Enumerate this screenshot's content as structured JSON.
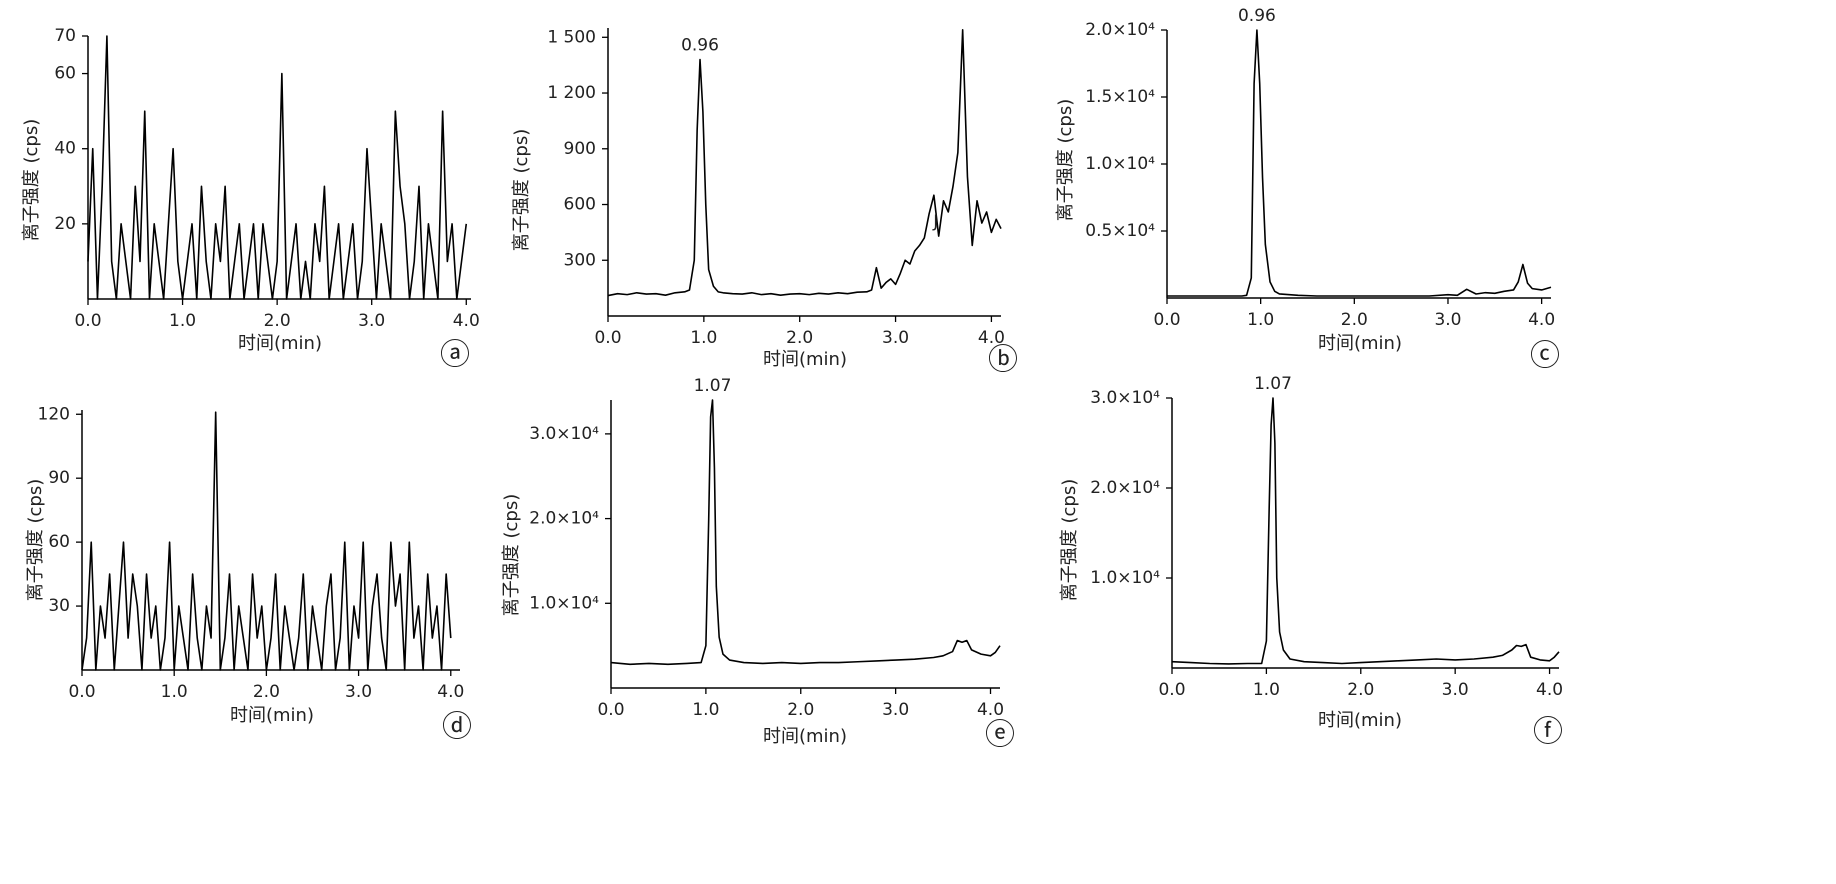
{
  "chart_data": [
    {
      "type": "line",
      "panel_label": "ⓐ",
      "xlabel": "时间(min)",
      "ylabel": "离子强度 (cps)",
      "color": "#000000",
      "x": [
        0,
        0.05,
        0.1,
        0.15,
        0.2,
        0.25,
        0.3,
        0.35,
        0.4,
        0.45,
        0.5,
        0.55,
        0.6,
        0.65,
        0.7,
        0.75,
        0.8,
        0.85,
        0.9,
        0.95,
        1.0,
        1.05,
        1.1,
        1.15,
        1.2,
        1.25,
        1.3,
        1.35,
        1.4,
        1.45,
        1.5,
        1.55,
        1.6,
        1.65,
        1.7,
        1.75,
        1.8,
        1.85,
        1.9,
        1.95,
        2.0,
        2.05,
        2.1,
        2.15,
        2.2,
        2.25,
        2.3,
        2.35,
        2.4,
        2.45,
        2.5,
        2.55,
        2.6,
        2.65,
        2.7,
        2.75,
        2.8,
        2.85,
        2.9,
        2.95,
        3.0,
        3.05,
        3.1,
        3.15,
        3.2,
        3.25,
        3.3,
        3.35,
        3.4,
        3.45,
        3.5,
        3.55,
        3.6,
        3.65,
        3.7,
        3.75,
        3.8,
        3.85,
        3.9,
        3.95,
        4.0
      ],
      "values": [
        10,
        40,
        0,
        30,
        70,
        10,
        0,
        20,
        10,
        0,
        30,
        10,
        50,
        0,
        20,
        10,
        0,
        20,
        40,
        10,
        0,
        10,
        20,
        0,
        30,
        10,
        0,
        20,
        10,
        30,
        0,
        10,
        20,
        0,
        10,
        20,
        0,
        20,
        10,
        0,
        10,
        60,
        0,
        10,
        20,
        0,
        10,
        0,
        20,
        10,
        30,
        0,
        10,
        20,
        0,
        10,
        20,
        0,
        10,
        40,
        20,
        0,
        20,
        10,
        0,
        50,
        30,
        20,
        0,
        10,
        30,
        0,
        20,
        10,
        0,
        50,
        10,
        20,
        0,
        10,
        20
      ],
      "xlim": [
        0,
        4.05
      ],
      "ylim": [
        0,
        70
      ],
      "xticks": [
        {
          "value": 0,
          "label": "0.0"
        },
        {
          "value": 1,
          "label": "1.0"
        },
        {
          "value": 2,
          "label": "2.0"
        },
        {
          "value": 3,
          "label": "3.0"
        },
        {
          "value": 4,
          "label": "4.0"
        }
      ],
      "yticks": [
        20,
        40,
        60,
        70
      ]
    },
    {
      "type": "line",
      "panel_label": "ⓑ",
      "xlabel": "时间(min)",
      "ylabel": "离子强度 (cps)",
      "color": "#000000",
      "x": [
        0,
        0.1,
        0.2,
        0.3,
        0.4,
        0.5,
        0.6,
        0.7,
        0.8,
        0.85,
        0.9,
        0.93,
        0.96,
        0.99,
        1.02,
        1.05,
        1.1,
        1.15,
        1.2,
        1.3,
        1.4,
        1.5,
        1.6,
        1.7,
        1.8,
        1.9,
        2.0,
        2.1,
        2.2,
        2.3,
        2.4,
        2.5,
        2.6,
        2.7,
        2.75,
        2.8,
        2.85,
        2.9,
        2.95,
        3.0,
        3.05,
        3.1,
        3.15,
        3.2,
        3.25,
        3.3,
        3.35,
        3.4,
        3.45,
        3.5,
        3.55,
        3.6,
        3.65,
        3.7,
        3.75,
        3.8,
        3.85,
        3.9,
        3.95,
        4.0,
        4.05,
        4.1
      ],
      "values": [
        110,
        120,
        115,
        125,
        118,
        120,
        112,
        125,
        130,
        140,
        300,
        1000,
        1380,
        1100,
        600,
        250,
        160,
        130,
        125,
        120,
        118,
        125,
        115,
        120,
        112,
        118,
        120,
        115,
        122,
        118,
        125,
        120,
        128,
        130,
        140,
        260,
        150,
        180,
        200,
        170,
        230,
        300,
        280,
        350,
        380,
        420,
        550,
        650,
        430,
        620,
        560,
        700,
        880,
        1540,
        750,
        380,
        620,
        500,
        560,
        450,
        520,
        470
      ],
      "xlim": [
        0,
        4.1
      ],
      "ylim": [
        0,
        1550
      ],
      "xticks": [
        {
          "value": 0,
          "label": "0.0"
        },
        {
          "value": 1,
          "label": "1.0"
        },
        {
          "value": 2,
          "label": "2.0"
        },
        {
          "value": 3,
          "label": "3.0"
        },
        {
          "value": 4,
          "label": "4.0"
        }
      ],
      "yticks": [
        300,
        600,
        900,
        {
          "value": 1200,
          "label": "1 200"
        },
        {
          "value": 1500,
          "label": "1 500"
        }
      ],
      "annotations": [
        {
          "text": "0.96",
          "x": 0.96,
          "y": 1380
        },
        {
          "text": "J",
          "x": 3.42,
          "y": 430
        }
      ]
    },
    {
      "type": "line",
      "panel_label": "ⓒ",
      "xlabel": "时间(min)",
      "ylabel": "离子强度 (cps)",
      "color": "#000000",
      "x": [
        0,
        0.2,
        0.4,
        0.6,
        0.8,
        0.85,
        0.9,
        0.93,
        0.96,
        0.99,
        1.02,
        1.05,
        1.1,
        1.15,
        1.2,
        1.4,
        1.6,
        1.8,
        2.0,
        2.2,
        2.4,
        2.6,
        2.8,
        3.0,
        3.1,
        3.2,
        3.3,
        3.4,
        3.5,
        3.6,
        3.7,
        3.75,
        3.8,
        3.85,
        3.9,
        4.0,
        4.1
      ],
      "values": [
        150,
        150,
        150,
        150,
        150,
        200,
        1500,
        16000,
        20000,
        16000,
        9000,
        4000,
        1200,
        500,
        300,
        200,
        150,
        150,
        150,
        150,
        150,
        150,
        150,
        250,
        200,
        650,
        300,
        400,
        350,
        500,
        600,
        1200,
        2500,
        1100,
        700,
        600,
        800
      ],
      "xlim": [
        0,
        4.1
      ],
      "ylim": [
        0,
        20000
      ],
      "xticks": [
        {
          "value": 0,
          "label": "0.0"
        },
        {
          "value": 1,
          "label": "1.0"
        },
        {
          "value": 2,
          "label": "2.0"
        },
        {
          "value": 3,
          "label": "3.0"
        },
        {
          "value": 4,
          "label": "4.0"
        }
      ],
      "yticks": [
        {
          "value": 5000,
          "label": "0.5×10⁴"
        },
        {
          "value": 10000,
          "label": "1.0×10⁴"
        },
        {
          "value": 15000,
          "label": "1.5×10⁴"
        },
        {
          "value": 20000,
          "label": "2.0×10⁴"
        }
      ],
      "annotations": [
        {
          "text": "0.96",
          "x": 0.96,
          "y": 20000
        }
      ]
    },
    {
      "type": "line",
      "panel_label": "ⓓ",
      "xlabel": "时间(min)",
      "ylabel": "离子强度 (cps)",
      "color": "#000000",
      "x": [
        0,
        0.05,
        0.1,
        0.15,
        0.2,
        0.25,
        0.3,
        0.35,
        0.4,
        0.45,
        0.5,
        0.55,
        0.6,
        0.65,
        0.7,
        0.75,
        0.8,
        0.85,
        0.9,
        0.95,
        1.0,
        1.05,
        1.1,
        1.15,
        1.2,
        1.25,
        1.3,
        1.35,
        1.4,
        1.45,
        1.5,
        1.55,
        1.6,
        1.65,
        1.7,
        1.75,
        1.8,
        1.85,
        1.9,
        1.95,
        2.0,
        2.05,
        2.1,
        2.15,
        2.2,
        2.25,
        2.3,
        2.35,
        2.4,
        2.45,
        2.5,
        2.55,
        2.6,
        2.65,
        2.7,
        2.75,
        2.8,
        2.85,
        2.9,
        2.95,
        3.0,
        3.05,
        3.1,
        3.15,
        3.2,
        3.25,
        3.3,
        3.35,
        3.4,
        3.45,
        3.5,
        3.55,
        3.6,
        3.65,
        3.7,
        3.75,
        3.8,
        3.85,
        3.9,
        3.95,
        4.0
      ],
      "values": [
        0,
        15,
        60,
        0,
        30,
        15,
        45,
        0,
        30,
        60,
        15,
        45,
        30,
        0,
        45,
        15,
        30,
        0,
        15,
        60,
        0,
        30,
        15,
        0,
        45,
        15,
        0,
        30,
        15,
        121,
        0,
        15,
        45,
        0,
        30,
        15,
        0,
        45,
        15,
        30,
        0,
        15,
        45,
        0,
        30,
        15,
        0,
        15,
        45,
        0,
        30,
        15,
        0,
        30,
        45,
        0,
        15,
        60,
        0,
        30,
        15,
        60,
        0,
        30,
        45,
        15,
        0,
        60,
        30,
        45,
        0,
        60,
        15,
        30,
        0,
        45,
        15,
        30,
        0,
        45,
        15
      ],
      "xlim": [
        0,
        4.1
      ],
      "ylim": [
        0,
        122
      ],
      "xticks": [
        {
          "value": 0,
          "label": "0.0"
        },
        {
          "value": 1,
          "label": "1.0"
        },
        {
          "value": 2,
          "label": "2.0"
        },
        {
          "value": 3,
          "label": "3.0"
        },
        {
          "value": 4,
          "label": "4.0"
        }
      ],
      "yticks": [
        30,
        60,
        90,
        120
      ]
    },
    {
      "type": "line",
      "panel_label": "ⓔ",
      "xlabel": "时间(min)",
      "ylabel": "离子强度 (cps)",
      "color": "#000000",
      "x": [
        0,
        0.2,
        0.4,
        0.6,
        0.8,
        0.95,
        1.0,
        1.03,
        1.05,
        1.07,
        1.09,
        1.11,
        1.14,
        1.18,
        1.25,
        1.4,
        1.6,
        1.8,
        2.0,
        2.2,
        2.4,
        2.6,
        2.8,
        3.0,
        3.2,
        3.4,
        3.5,
        3.6,
        3.65,
        3.7,
        3.75,
        3.8,
        3.9,
        4.0,
        4.05,
        4.1
      ],
      "values": [
        3000,
        2800,
        2900,
        2800,
        2900,
        3000,
        5000,
        20000,
        32000,
        34000,
        26000,
        12000,
        6000,
        4000,
        3300,
        3000,
        2900,
        3000,
        2900,
        3000,
        3000,
        3100,
        3200,
        3300,
        3400,
        3600,
        3800,
        4300,
        5600,
        5400,
        5600,
        4500,
        4000,
        3800,
        4200,
        5000
      ],
      "xlim": [
        0,
        4.1
      ],
      "ylim": [
        0,
        34000
      ],
      "xticks": [
        {
          "value": 0,
          "label": "0.0"
        },
        {
          "value": 1,
          "label": "1.0"
        },
        {
          "value": 2,
          "label": "2.0"
        },
        {
          "value": 3,
          "label": "3.0"
        },
        {
          "value": 4,
          "label": "4.0"
        }
      ],
      "yticks": [
        {
          "value": 10000,
          "label": "1.0×10⁴"
        },
        {
          "value": 20000,
          "label": "2.0×10⁴"
        },
        {
          "value": 30000,
          "label": "3.0×10⁴"
        }
      ],
      "annotations": [
        {
          "text": "1.07",
          "x": 1.07,
          "y": 34000
        }
      ]
    },
    {
      "type": "line",
      "panel_label": "ⓕ",
      "xlabel": "时间(min)",
      "ylabel": "离子强度 (cps)",
      "color": "#000000",
      "x": [
        0,
        0.2,
        0.4,
        0.6,
        0.8,
        0.95,
        1.0,
        1.03,
        1.05,
        1.07,
        1.09,
        1.11,
        1.14,
        1.18,
        1.25,
        1.4,
        1.6,
        1.8,
        2.0,
        2.2,
        2.4,
        2.6,
        2.8,
        3.0,
        3.2,
        3.4,
        3.5,
        3.6,
        3.65,
        3.7,
        3.75,
        3.8,
        3.9,
        4.0,
        4.05,
        4.1
      ],
      "values": [
        700,
        600,
        500,
        450,
        500,
        500,
        3000,
        18000,
        27000,
        30000,
        25000,
        10000,
        4000,
        2000,
        1000,
        700,
        600,
        500,
        600,
        700,
        800,
        900,
        1000,
        900,
        1000,
        1200,
        1400,
        2000,
        2500,
        2400,
        2600,
        1200,
        900,
        800,
        1200,
        1800
      ],
      "xlim": [
        0,
        4.1
      ],
      "ylim": [
        0,
        30000
      ],
      "xticks": [
        {
          "value": 0,
          "label": "0.0"
        },
        {
          "value": 1,
          "label": "1.0"
        },
        {
          "value": 2,
          "label": "2.0"
        },
        {
          "value": 3,
          "label": "3.0"
        },
        {
          "value": 4,
          "label": "4.0"
        }
      ],
      "yticks": [
        {
          "value": 10000,
          "label": "1.0×10⁴"
        },
        {
          "value": 20000,
          "label": "2.0×10⁴"
        },
        {
          "value": 30000,
          "label": "3.0×10⁴"
        }
      ],
      "annotations": [
        {
          "text": "1.07",
          "x": 1.07,
          "y": 30000
        }
      ]
    }
  ]
}
